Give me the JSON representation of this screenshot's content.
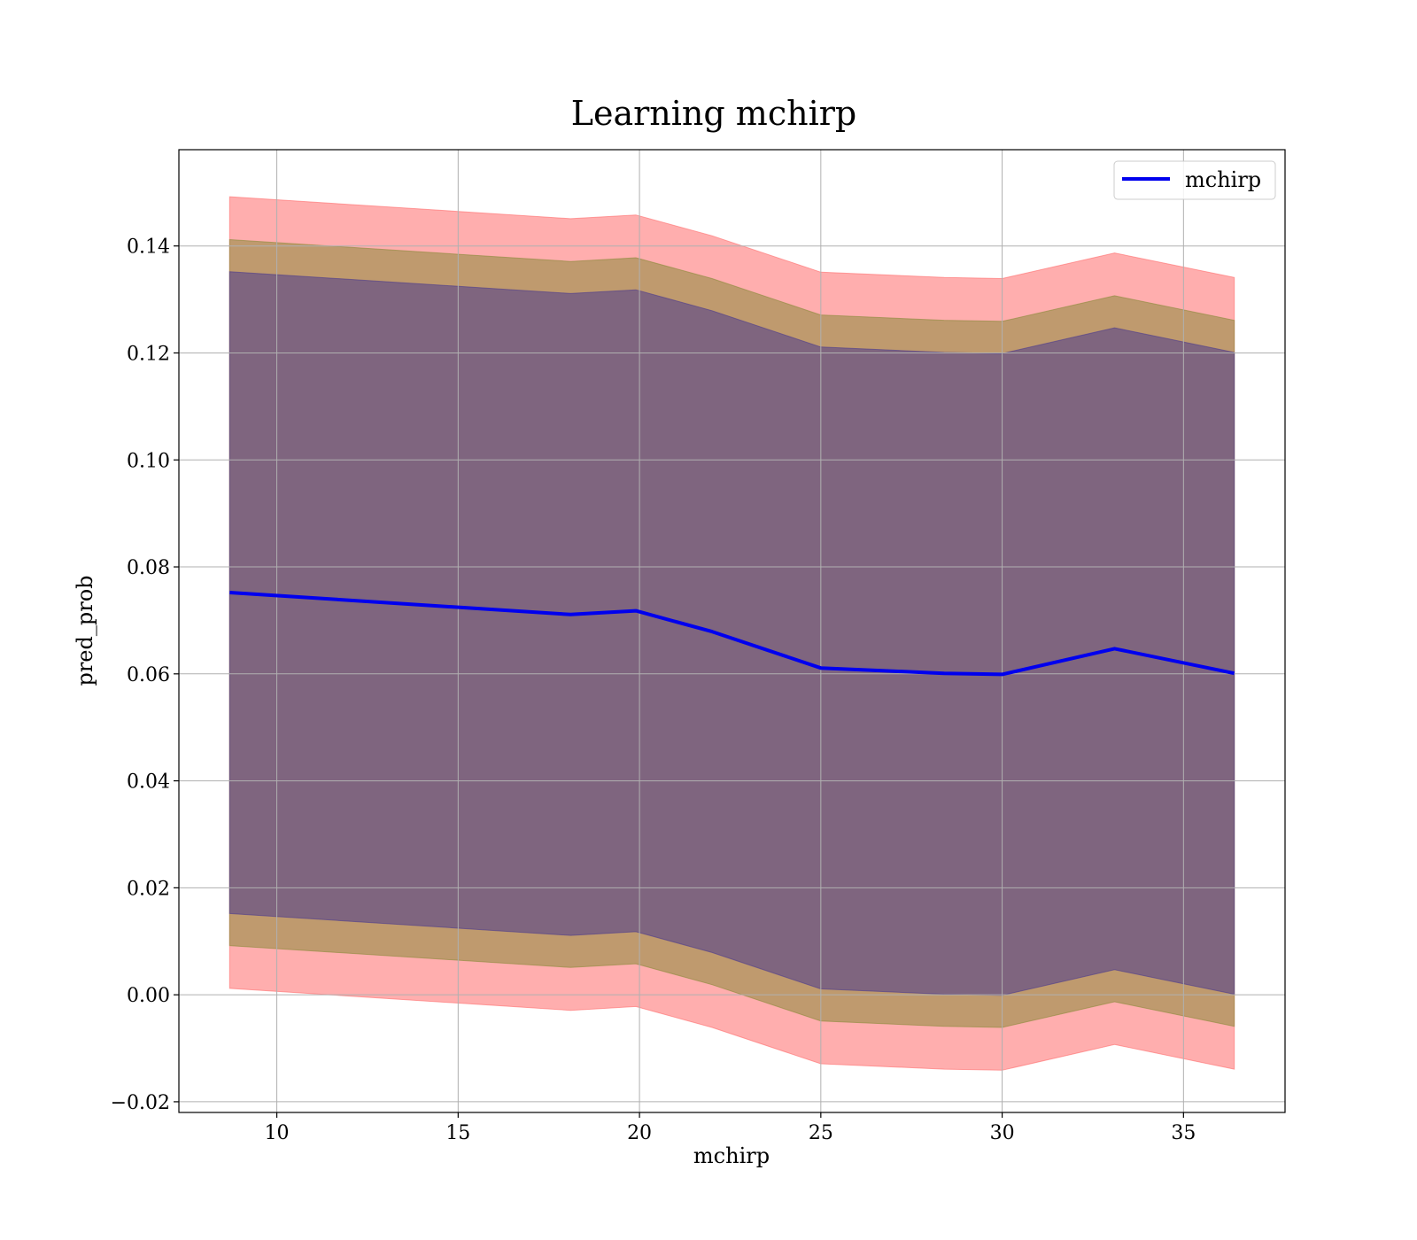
{
  "chart_data": {
    "type": "line",
    "title": "Learning mchirp",
    "xlabel": "mchirp",
    "ylabel": "pred_prob",
    "xlim": [
      7.3,
      37.8
    ],
    "ylim": [
      -0.022,
      0.158
    ],
    "xticks": [
      10,
      15,
      20,
      25,
      30,
      35
    ],
    "xtick_labels": [
      "10",
      "15",
      "20",
      "25",
      "30",
      "35"
    ],
    "yticks": [
      -0.02,
      0.0,
      0.02,
      0.04,
      0.06,
      0.08,
      0.1,
      0.12,
      0.14
    ],
    "ytick_labels": [
      "−0.02",
      "0.00",
      "0.02",
      "0.04",
      "0.06",
      "0.08",
      "0.10",
      "0.12",
      "0.14"
    ],
    "grid": true,
    "legend_position": "top-right",
    "x": [
      8.7,
      18.1,
      19.9,
      22.0,
      25.0,
      28.4,
      30.0,
      33.1,
      36.4
    ],
    "series": [
      {
        "name": "mchirp",
        "color": "#0000ee",
        "values": [
          0.0752,
          0.0711,
          0.0718,
          0.0679,
          0.0611,
          0.0601,
          0.0599,
          0.0647,
          0.0601
        ]
      }
    ],
    "bands": [
      {
        "color": "#ff6b6b",
        "upper": [
          0.1492,
          0.1451,
          0.1458,
          0.1419,
          0.1351,
          0.1341,
          0.1339,
          0.1387,
          0.1341
        ],
        "lower": [
          0.0012,
          -0.0029,
          -0.0022,
          -0.0061,
          -0.0129,
          -0.0139,
          -0.0141,
          -0.0093,
          -0.0139
        ]
      },
      {
        "color": "#8b8b3a",
        "upper": [
          0.1412,
          0.1371,
          0.1378,
          0.1339,
          0.1271,
          0.1261,
          0.1259,
          0.1307,
          0.1261
        ],
        "lower": [
          0.0092,
          0.0051,
          0.0058,
          0.0019,
          -0.0049,
          -0.0059,
          -0.0061,
          -0.0013,
          -0.0059
        ]
      },
      {
        "color": "#4b3a8e",
        "upper": [
          0.1352,
          0.1311,
          0.1318,
          0.1279,
          0.1211,
          0.1201,
          0.1199,
          0.1247,
          0.1201
        ],
        "lower": [
          0.0152,
          0.0111,
          0.0118,
          0.0079,
          0.0011,
          0.0001,
          -0.0001,
          0.0047,
          0.0001
        ]
      }
    ]
  }
}
